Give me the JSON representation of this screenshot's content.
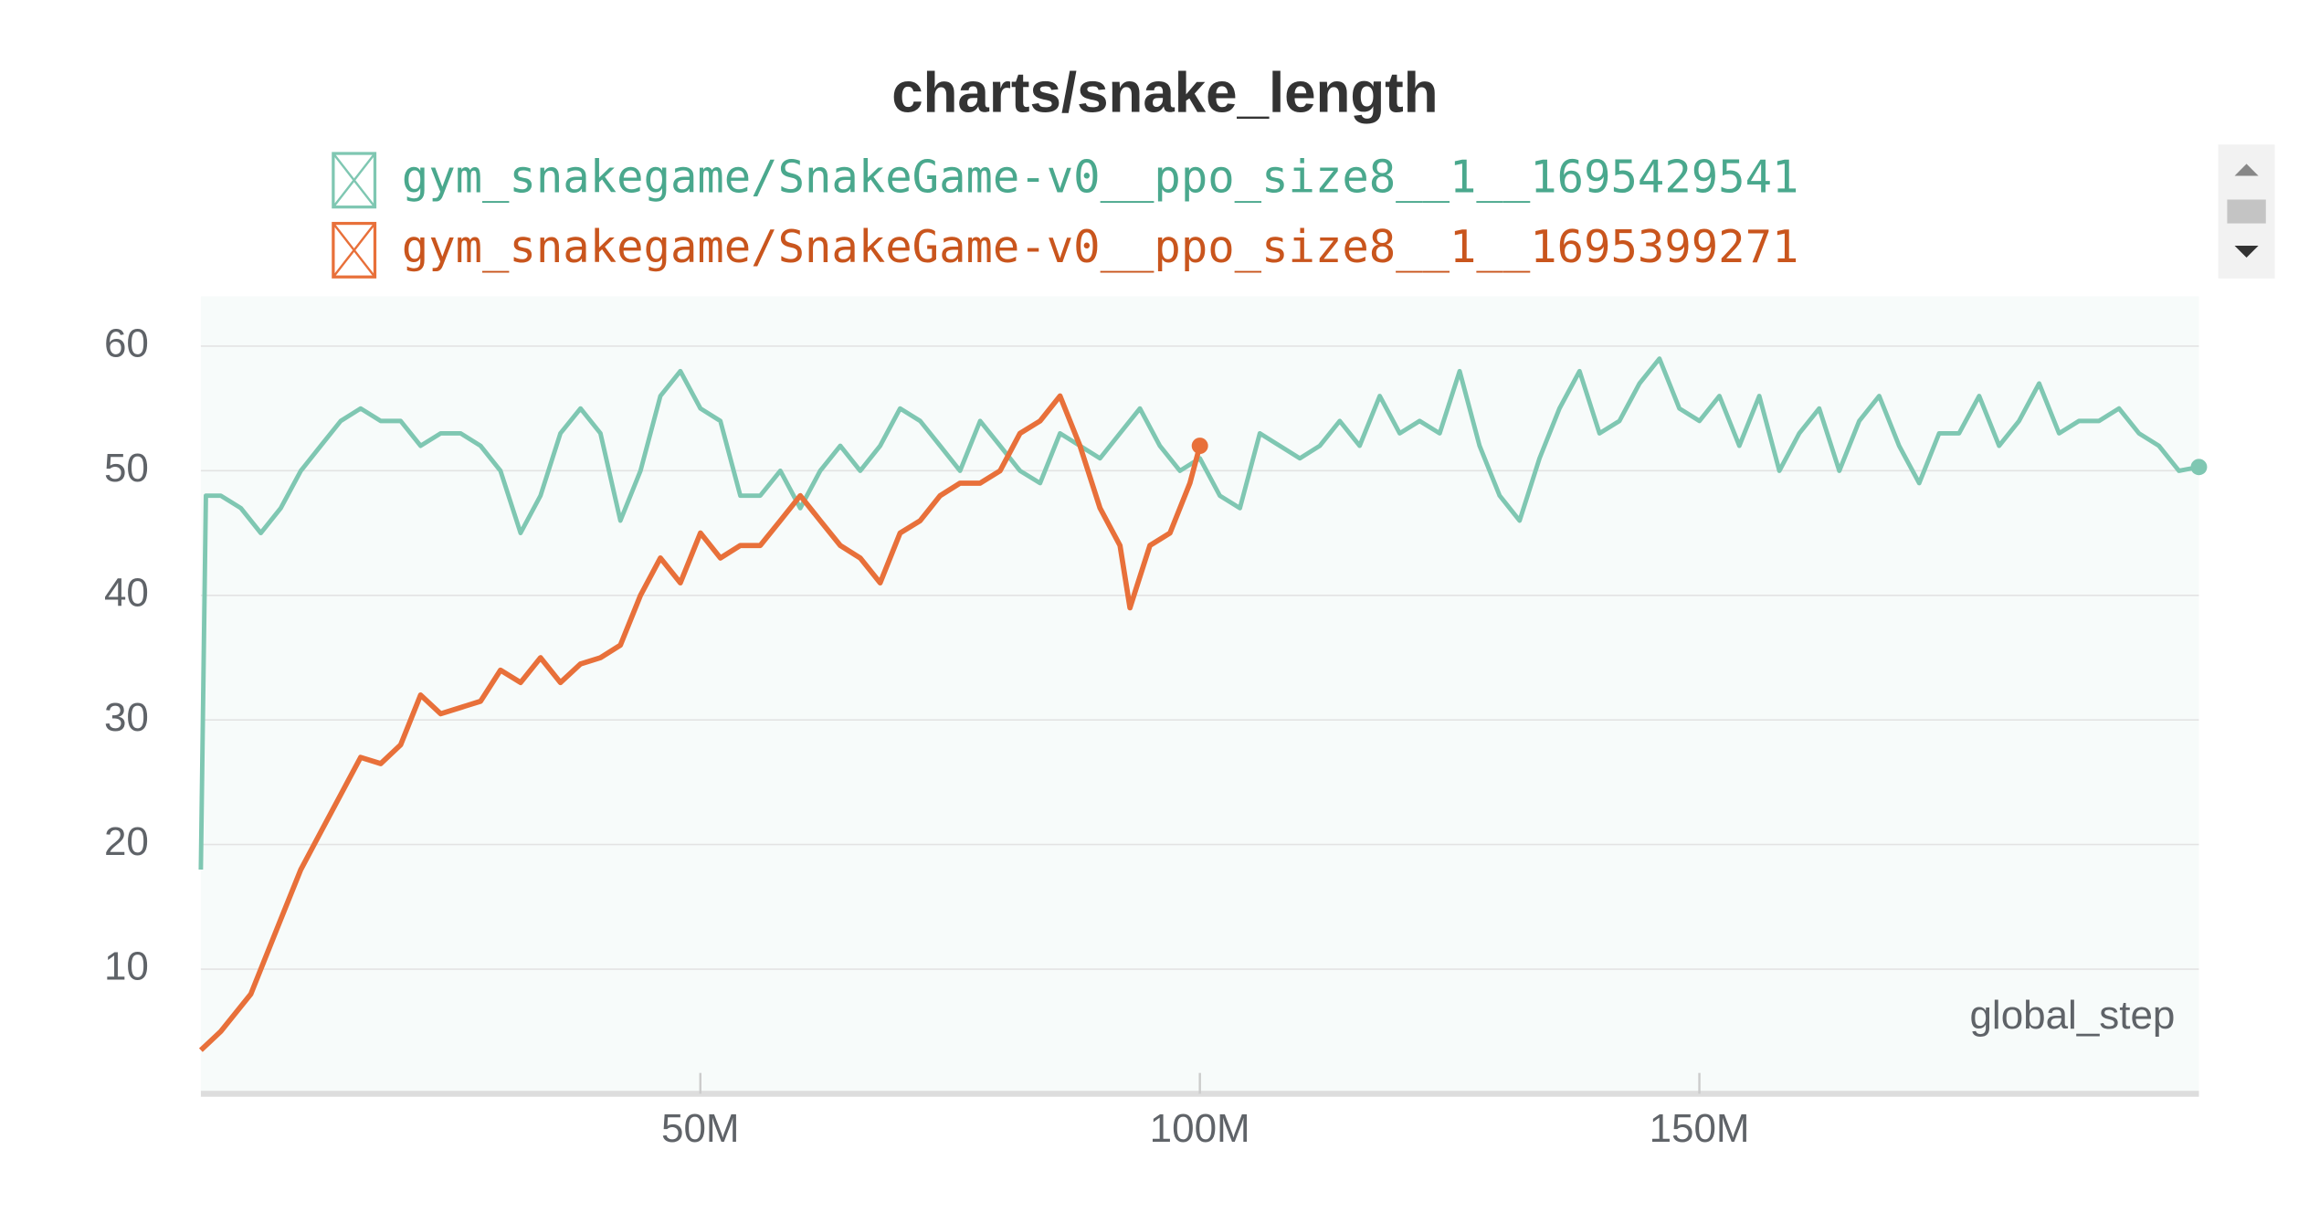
{
  "chart_data": {
    "type": "line",
    "title": "charts/snake_length",
    "xlabel": "global_step",
    "xlim": [
      0,
      200000000
    ],
    "ylim": [
      0,
      64
    ],
    "xticks": [
      {
        "value": 50000000,
        "label": "50M"
      },
      {
        "value": 100000000,
        "label": "100M"
      },
      {
        "value": 150000000,
        "label": "150M"
      }
    ],
    "yticks": [
      10,
      20,
      30,
      40,
      50,
      60
    ],
    "grid": true,
    "series": [
      {
        "name": "gym_snakegame/SnakeGame-v0__ppo_size8__1__1695429541",
        "color": "#7fc7b2",
        "x": [
          0,
          500000,
          2000000,
          4000000,
          6000000,
          8000000,
          10000000,
          12000000,
          14000000,
          16000000,
          18000000,
          20000000,
          22000000,
          24000000,
          26000000,
          28000000,
          30000000,
          32000000,
          34000000,
          36000000,
          38000000,
          40000000,
          42000000,
          44000000,
          46000000,
          48000000,
          50000000,
          52000000,
          54000000,
          56000000,
          58000000,
          60000000,
          62000000,
          64000000,
          66000000,
          68000000,
          70000000,
          72000000,
          74000000,
          76000000,
          78000000,
          80000000,
          82000000,
          84000000,
          86000000,
          88000000,
          90000000,
          92000000,
          94000000,
          96000000,
          98000000,
          100000000,
          102000000,
          104000000,
          106000000,
          108000000,
          110000000,
          112000000,
          114000000,
          116000000,
          118000000,
          120000000,
          122000000,
          124000000,
          126000000,
          128000000,
          130000000,
          132000000,
          134000000,
          136000000,
          138000000,
          140000000,
          142000000,
          144000000,
          146000000,
          148000000,
          150000000,
          152000000,
          154000000,
          156000000,
          158000000,
          160000000,
          162000000,
          164000000,
          166000000,
          168000000,
          170000000,
          172000000,
          174000000,
          176000000,
          178000000,
          180000000,
          182000000,
          184000000,
          186000000,
          188000000,
          190000000,
          192000000,
          194000000,
          196000000,
          198000000,
          200000000
        ],
        "values": [
          18,
          48,
          48,
          47,
          45,
          47,
          50,
          52,
          54,
          55,
          54,
          54,
          52,
          53,
          53,
          52,
          50,
          45,
          48,
          53,
          55,
          53,
          46,
          50,
          56,
          58,
          55,
          54,
          48,
          48,
          50,
          47,
          50,
          52,
          50,
          52,
          55,
          54,
          52,
          50,
          54,
          52,
          50,
          49,
          53,
          52,
          51,
          53,
          55,
          52,
          50,
          51,
          48,
          47,
          53,
          52,
          51,
          52,
          54,
          52,
          56,
          53,
          54,
          53,
          58,
          52,
          48,
          46,
          51,
          55,
          58,
          53,
          54,
          57,
          59,
          55,
          54,
          56,
          52,
          56,
          50,
          53,
          55,
          50,
          54,
          56,
          52,
          49,
          53,
          53,
          56,
          52,
          54,
          57,
          53,
          54,
          54,
          55,
          53,
          52,
          50,
          50.3
        ]
      },
      {
        "name": "gym_snakegame/SnakeGame-v0__ppo_size8__1__1695399271",
        "color": "#e8703a",
        "x": [
          0,
          2000000,
          5000000,
          8000000,
          10000000,
          12000000,
          14000000,
          16000000,
          18000000,
          20000000,
          22000000,
          24000000,
          26000000,
          28000000,
          30000000,
          32000000,
          34000000,
          36000000,
          38000000,
          40000000,
          42000000,
          44000000,
          46000000,
          48000000,
          50000000,
          52000000,
          54000000,
          56000000,
          58000000,
          60000000,
          62000000,
          64000000,
          66000000,
          68000000,
          70000000,
          72000000,
          74000000,
          76000000,
          78000000,
          80000000,
          82000000,
          84000000,
          86000000,
          88000000,
          90000000,
          92000000,
          93000000,
          95000000,
          97000000,
          99000000,
          100000000
        ],
        "values": [
          3.5,
          5,
          8,
          14,
          18,
          21,
          24,
          27,
          26.5,
          28,
          32,
          30.5,
          31,
          31.5,
          34,
          33,
          35,
          33,
          34.5,
          35,
          36,
          40,
          43,
          41,
          45,
          43,
          44,
          44,
          46,
          48,
          46,
          44,
          43,
          41,
          45,
          46,
          48,
          49,
          49,
          50,
          53,
          54,
          56,
          52,
          47,
          44,
          39,
          44,
          45,
          49,
          52
        ]
      }
    ]
  }
}
